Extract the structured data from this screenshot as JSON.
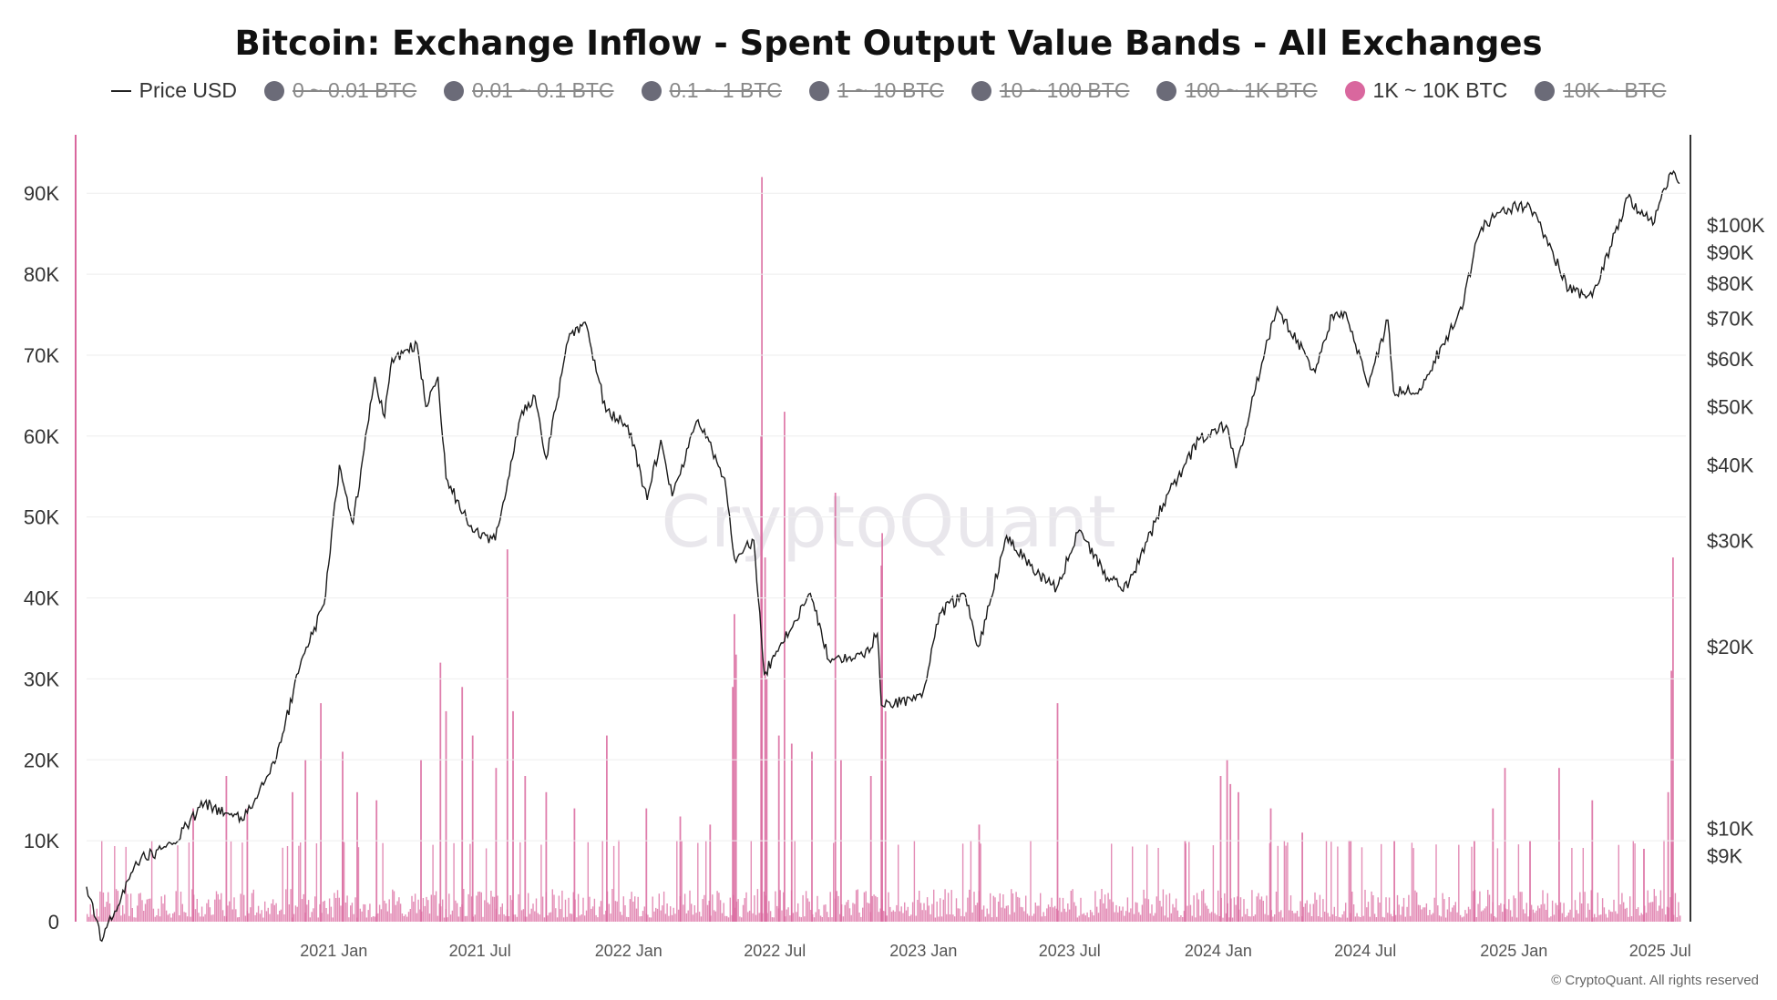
{
  "title": "Bitcoin: Exchange Inflow - Spent Output Value Bands - All Exchanges",
  "legend": [
    {
      "label": "Price USD",
      "type": "line",
      "color": "#222222",
      "active": true
    },
    {
      "label": "0 ~ 0.01 BTC",
      "type": "dot",
      "color": "#6b6b78",
      "active": false
    },
    {
      "label": "0.01 ~ 0.1 BTC",
      "type": "dot",
      "color": "#6b6b78",
      "active": false
    },
    {
      "label": "0.1 ~ 1 BTC",
      "type": "dot",
      "color": "#6b6b78",
      "active": false
    },
    {
      "label": "1 ~ 10 BTC",
      "type": "dot",
      "color": "#6b6b78",
      "active": false
    },
    {
      "label": "10 ~ 100 BTC",
      "type": "dot",
      "color": "#6b6b78",
      "active": false
    },
    {
      "label": "100 ~ 1K BTC",
      "type": "dot",
      "color": "#6b6b78",
      "active": false
    },
    {
      "label": "1K ~ 10K BTC",
      "type": "dot",
      "color": "#d9679e",
      "active": true
    },
    {
      "label": "10K ~ BTC",
      "type": "dot",
      "color": "#6b6b78",
      "active": false
    }
  ],
  "watermark": "CryptoQuant",
  "footer": "© CryptoQuant. All rights reserved",
  "colors": {
    "price": "#1a1a1a",
    "bars": "#d9679e",
    "axis_left": "#d9679e",
    "axis_right": "#333333"
  },
  "chart_data": {
    "type": "bar+line",
    "x_range": [
      "2020-03-01",
      "2025-07-25"
    ],
    "x_ticks": [
      "2021 Jan",
      "2021 Jul",
      "2022 Jan",
      "2022 Jul",
      "2023 Jan",
      "2023 Jul",
      "2024 Jan",
      "2024 Jul",
      "2025 Jan",
      "2025 Jul"
    ],
    "y_left": {
      "min": 0,
      "max": 97000,
      "ticks": [
        "0",
        "10K",
        "20K",
        "30K",
        "40K",
        "50K",
        "60K",
        "70K",
        "80K",
        "90K"
      ]
    },
    "y_right": {
      "scale": "log",
      "min": 7000,
      "max": 140000,
      "ticks": [
        "$9K",
        "$10K",
        "$20K",
        "$30K",
        "$40K",
        "$50K",
        "$60K",
        "$70K",
        "$80K",
        "$90K",
        "$100K"
      ]
    },
    "series": [
      {
        "name": "Price USD",
        "type": "line",
        "axis": "right",
        "points": [
          [
            "2020-03-01",
            8000
          ],
          [
            "2020-03-20",
            6500
          ],
          [
            "2020-05-01",
            8800
          ],
          [
            "2020-06-15",
            9400
          ],
          [
            "2020-07-25",
            11000
          ],
          [
            "2020-09-10",
            10300
          ],
          [
            "2020-10-20",
            12800
          ],
          [
            "2020-11-20",
            18500
          ],
          [
            "2020-12-20",
            23500
          ],
          [
            "2021-01-08",
            40000
          ],
          [
            "2021-01-25",
            32000
          ],
          [
            "2021-02-21",
            56000
          ],
          [
            "2021-03-05",
            48000
          ],
          [
            "2021-03-14",
            60000
          ],
          [
            "2021-04-14",
            63500
          ],
          [
            "2021-04-25",
            50000
          ],
          [
            "2021-05-10",
            56000
          ],
          [
            "2021-05-20",
            38000
          ],
          [
            "2021-06-22",
            31000
          ],
          [
            "2021-07-20",
            30000
          ],
          [
            "2021-08-20",
            48000
          ],
          [
            "2021-09-07",
            52000
          ],
          [
            "2021-09-21",
            41000
          ],
          [
            "2021-10-20",
            66000
          ],
          [
            "2021-11-10",
            68000
          ],
          [
            "2021-12-04",
            49000
          ],
          [
            "2021-12-31",
            46500
          ],
          [
            "2022-01-24",
            35000
          ],
          [
            "2022-02-10",
            44000
          ],
          [
            "2022-02-24",
            35500
          ],
          [
            "2022-03-28",
            47500
          ],
          [
            "2022-04-30",
            38000
          ],
          [
            "2022-05-12",
            28000
          ],
          [
            "2022-06-05",
            30000
          ],
          [
            "2022-06-18",
            18000
          ],
          [
            "2022-07-01",
            19300
          ],
          [
            "2022-08-14",
            24500
          ],
          [
            "2022-09-06",
            19000
          ],
          [
            "2022-10-20",
            19200
          ],
          [
            "2022-11-05",
            21000
          ],
          [
            "2022-11-10",
            16000
          ],
          [
            "2022-12-30",
            16500
          ],
          [
            "2023-01-21",
            22700
          ],
          [
            "2023-02-20",
            24500
          ],
          [
            "2023-03-10",
            20000
          ],
          [
            "2023-04-14",
            30500
          ],
          [
            "2023-05-25",
            26300
          ],
          [
            "2023-06-15",
            25000
          ],
          [
            "2023-07-13",
            31200
          ],
          [
            "2023-08-17",
            26000
          ],
          [
            "2023-09-11",
            25000
          ],
          [
            "2023-10-25",
            34500
          ],
          [
            "2023-12-08",
            44000
          ],
          [
            "2024-01-11",
            46500
          ],
          [
            "2024-01-23",
            39500
          ],
          [
            "2024-02-28",
            62000
          ],
          [
            "2024-03-14",
            73000
          ],
          [
            "2024-04-30",
            57000
          ],
          [
            "2024-05-21",
            71000
          ],
          [
            "2024-06-07",
            71500
          ],
          [
            "2024-07-05",
            54000
          ],
          [
            "2024-07-29",
            69500
          ],
          [
            "2024-08-05",
            53000
          ],
          [
            "2024-09-06",
            53500
          ],
          [
            "2024-10-29",
            72500
          ],
          [
            "2024-11-12",
            89000
          ],
          [
            "2024-11-22",
            99000
          ],
          [
            "2024-12-17",
            106000
          ],
          [
            "2025-01-20",
            108000
          ],
          [
            "2025-02-26",
            85000
          ],
          [
            "2025-03-10",
            78000
          ],
          [
            "2025-04-08",
            76000
          ],
          [
            "2025-05-22",
            111000
          ],
          [
            "2025-06-22",
            100000
          ],
          [
            "2025-07-14",
            122000
          ],
          [
            "2025-07-25",
            117000
          ]
        ]
      },
      {
        "name": "1K ~ 10K BTC",
        "type": "bar",
        "axis": "left",
        "baseline_range": [
          500,
          4500
        ],
        "spikes": [
          [
            "2020-07-10",
            14000
          ],
          [
            "2020-08-20",
            18000
          ],
          [
            "2020-09-15",
            14000
          ],
          [
            "2020-11-10",
            16000
          ],
          [
            "2020-11-26",
            20000
          ],
          [
            "2020-12-15",
            27000
          ],
          [
            "2021-01-11",
            21000
          ],
          [
            "2021-01-29",
            16000
          ],
          [
            "2021-02-22",
            15000
          ],
          [
            "2021-04-18",
            20000
          ],
          [
            "2021-05-12",
            32000
          ],
          [
            "2021-05-19",
            26000
          ],
          [
            "2021-06-08",
            29000
          ],
          [
            "2021-06-21",
            23000
          ],
          [
            "2021-07-20",
            19000
          ],
          [
            "2021-08-03",
            46000
          ],
          [
            "2021-08-10",
            26000
          ],
          [
            "2021-08-25",
            18000
          ],
          [
            "2021-09-20",
            16000
          ],
          [
            "2021-10-25",
            14000
          ],
          [
            "2021-12-04",
            23000
          ],
          [
            "2022-01-22",
            14000
          ],
          [
            "2022-03-05",
            13000
          ],
          [
            "2022-04-11",
            12000
          ],
          [
            "2022-05-09",
            29000
          ],
          [
            "2022-05-11",
            38000
          ],
          [
            "2022-05-13",
            33000
          ],
          [
            "2022-06-13",
            60000
          ],
          [
            "2022-06-14",
            92000
          ],
          [
            "2022-06-18",
            45000
          ],
          [
            "2022-06-20",
            30000
          ],
          [
            "2022-07-05",
            23000
          ],
          [
            "2022-07-12",
            63000
          ],
          [
            "2022-07-21",
            22000
          ],
          [
            "2022-08-15",
            21000
          ],
          [
            "2022-09-13",
            53000
          ],
          [
            "2022-09-20",
            20000
          ],
          [
            "2022-10-27",
            18000
          ],
          [
            "2022-11-09",
            44000
          ],
          [
            "2022-11-10",
            48000
          ],
          [
            "2022-11-14",
            26000
          ],
          [
            "2023-03-10",
            12000
          ],
          [
            "2023-06-15",
            27000
          ],
          [
            "2023-11-20",
            10000
          ],
          [
            "2024-01-03",
            18000
          ],
          [
            "2024-01-11",
            20000
          ],
          [
            "2024-01-15",
            17000
          ],
          [
            "2024-01-25",
            16000
          ],
          [
            "2024-03-05",
            14000
          ],
          [
            "2024-04-13",
            11000
          ],
          [
            "2024-06-12",
            10000
          ],
          [
            "2024-08-05",
            10000
          ],
          [
            "2024-11-12",
            10000
          ],
          [
            "2024-12-05",
            14000
          ],
          [
            "2024-12-20",
            19000
          ],
          [
            "2025-01-20",
            10000
          ],
          [
            "2025-02-25",
            19000
          ],
          [
            "2025-04-07",
            15000
          ],
          [
            "2025-06-10",
            9000
          ],
          [
            "2025-07-10",
            16000
          ],
          [
            "2025-07-14",
            31000
          ],
          [
            "2025-07-16",
            45000
          ]
        ]
      }
    ]
  }
}
